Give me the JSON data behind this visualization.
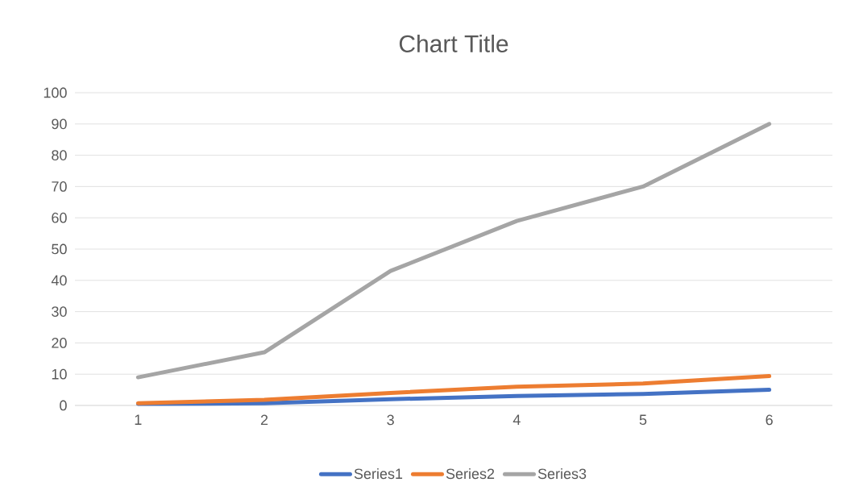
{
  "chart_data": {
    "type": "line",
    "title": "Chart Title",
    "categories": [
      "1",
      "2",
      "3",
      "4",
      "5",
      "6"
    ],
    "series": [
      {
        "name": "Series1",
        "color": "#4472c4",
        "values": [
          0.5,
          0.7,
          2,
          3,
          3.7,
          5
        ]
      },
      {
        "name": "Series2",
        "color": "#ed7d31",
        "values": [
          0.7,
          1.8,
          4,
          6,
          7,
          9.4
        ]
      },
      {
        "name": "Series3",
        "color": "#a5a5a5",
        "values": [
          9,
          17,
          43,
          59,
          70,
          90
        ]
      }
    ],
    "ylim": [
      0,
      100
    ],
    "yticks": [
      0,
      10,
      20,
      30,
      40,
      50,
      60,
      70,
      80,
      90,
      100
    ],
    "grid": "y",
    "legend": "bottom",
    "line_style": "solid"
  }
}
